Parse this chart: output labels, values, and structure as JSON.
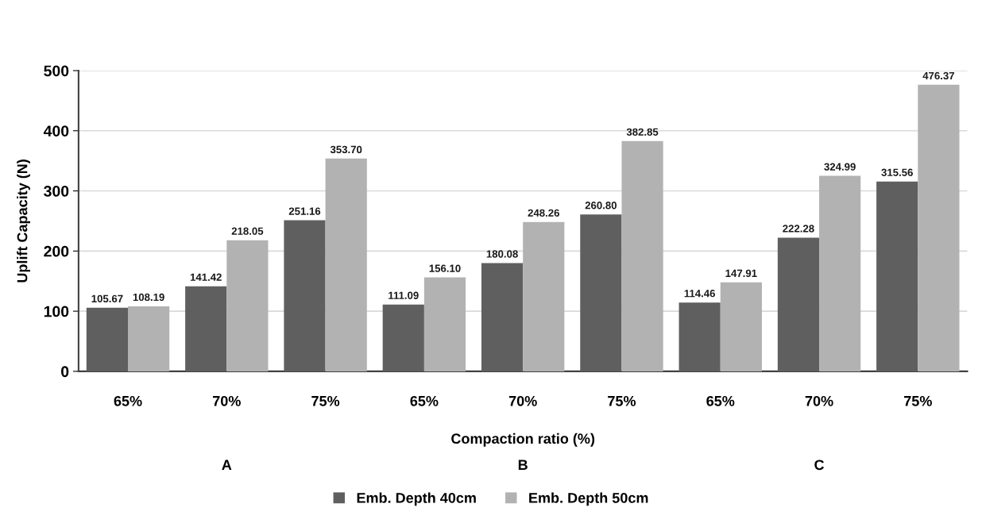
{
  "chart_data": {
    "type": "bar",
    "xlabel": "Compaction ratio (%)",
    "ylabel": "Uplift Capacity (N)",
    "categories": [
      "65%",
      "70%",
      "75%",
      "65%",
      "70%",
      "75%",
      "65%",
      "70%",
      "75%"
    ],
    "series": [
      {
        "name": "Emb. Depth 40cm",
        "color": "#5f5f5f",
        "values": [
          105.67,
          141.42,
          251.16,
          111.09,
          180.08,
          260.8,
          114.46,
          222.28,
          315.56
        ],
        "value_labels": [
          "105.67",
          "141.42",
          "251.16",
          "111.09",
          "180.08",
          "260.80",
          "114.46",
          "222.28",
          "315.56"
        ]
      },
      {
        "name": "Emb. Depth 50cm",
        "color": "#b2b2b2",
        "values": [
          108.19,
          218.05,
          353.7,
          156.1,
          248.26,
          382.85,
          147.91,
          324.99,
          476.37
        ],
        "value_labels": [
          "108.19",
          "218.05",
          "353.70",
          "156.10",
          "248.26",
          "382.85",
          "147.91",
          "324.99",
          "476.37"
        ]
      }
    ],
    "annotations": [
      "A",
      "B",
      "C"
    ],
    "ylim": [
      0,
      500
    ],
    "yticks": [
      0,
      100,
      200,
      300,
      400,
      500
    ],
    "grid": "y",
    "legend": "bottom"
  }
}
